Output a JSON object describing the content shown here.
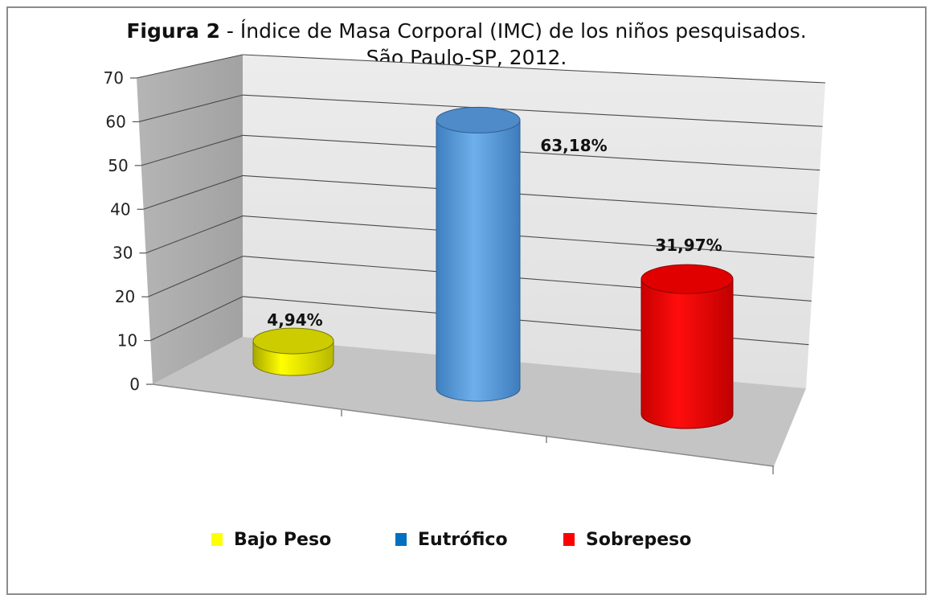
{
  "chart_data": {
    "type": "bar",
    "title_prefix": "Figura 2",
    "title_rest": " - Índice de Masa Corporal (IMC) de los niños pesquisados.",
    "subtitle": "São Paulo-SP, 2012.",
    "categories": [
      "Bajo Peso",
      "Eutrófico",
      "Sobrepeso"
    ],
    "values": [
      4.94,
      63.18,
      31.97
    ],
    "data_labels": [
      "4,94%",
      "63,18%",
      "31,97%"
    ],
    "colors": [
      "#ffff00",
      "#5b9bd5",
      "#ff0000"
    ],
    "legend_colors": [
      "#ffff00",
      "#0070c0",
      "#ff0000"
    ],
    "yticks": [
      "0",
      "10",
      "20",
      "30",
      "40",
      "50",
      "60",
      "70"
    ],
    "ylim": [
      0,
      70
    ],
    "grid": true,
    "legend_position": "bottom",
    "style": "3d-cylinder"
  }
}
